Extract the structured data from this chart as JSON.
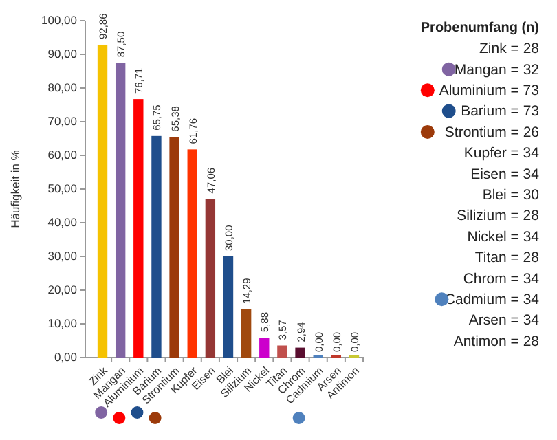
{
  "chart_data": {
    "type": "bar",
    "ylabel": "Häufigkeit in %",
    "categories": [
      "Zink",
      "Mangan",
      "Aluminium",
      "Barium",
      "Strontium",
      "Kupfer",
      "Eisen",
      "Blei",
      "Silizium",
      "Nickel",
      "Titan",
      "Chrom",
      "Cadmium",
      "Arsen",
      "Antimon"
    ],
    "values": [
      92.86,
      87.5,
      76.71,
      65.75,
      65.38,
      61.76,
      47.06,
      30,
      14.29,
      5.88,
      3.57,
      2.94,
      0,
      0,
      0
    ],
    "value_labels": [
      "92,86",
      "87,50",
      "76,71",
      "65,75",
      "65,38",
      "61,76",
      "47,06",
      "30,00",
      "14,29",
      "5,88",
      "3,57",
      "2,94",
      "0,00",
      "0,00",
      "0,00"
    ],
    "colors": [
      "#f5c200",
      "#8064a2",
      "#ff0000",
      "#1f4e8c",
      "#9c3a0a",
      "#ff3300",
      "#953735",
      "#1f4e8c",
      "#a0490f",
      "#cc00cc",
      "#c0504d",
      "#5a0f30",
      "#4f81bd",
      "#c0392b",
      "#c8c832"
    ],
    "ylim": [
      0,
      100
    ],
    "yticks": [
      {
        "value": 0,
        "label": "0,00"
      },
      {
        "value": 10,
        "label": "10,00"
      },
      {
        "value": 20,
        "label": "20,00"
      },
      {
        "value": 30,
        "label": "30,00"
      },
      {
        "value": 40,
        "label": "40,00"
      },
      {
        "value": 50,
        "label": "50,00"
      },
      {
        "value": 60,
        "label": "60,00"
      },
      {
        "value": 70,
        "label": "70,00"
      },
      {
        "value": 80,
        "label": "80,00"
      },
      {
        "value": 90,
        "label": "90,00"
      },
      {
        "value": 100,
        "label": "100,00"
      }
    ],
    "annotations": [
      "Probenumfang (n)",
      "Zink = 28",
      "Mangan = 32",
      "Aluminium = 73",
      "Barium = 73",
      "Strontium = 26",
      "Kupfer = 34",
      "Eisen = 34",
      "Blei = 30",
      "Silizium = 28",
      "Nickel = 34",
      "Titan = 28",
      "Chrom = 34",
      "Cadmium = 34",
      "Arsen = 34",
      "Antimon = 28"
    ],
    "grid": false
  }
}
